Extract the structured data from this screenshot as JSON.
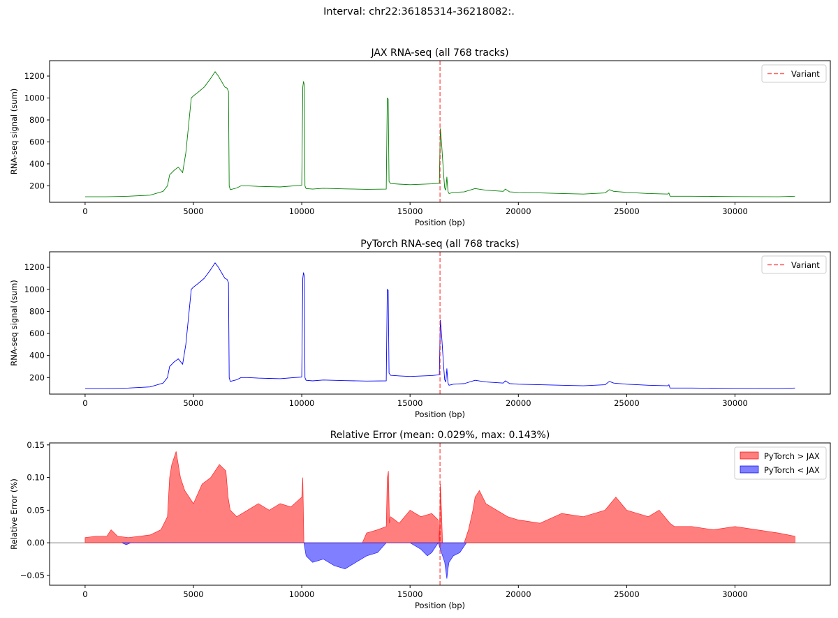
{
  "suptitle": "Interval: chr22:36185314-36218082:.",
  "colors": {
    "jax": "#008000",
    "pytorch": "#0000ff",
    "variant": "#ff0000",
    "pos_fill": "#ff0000",
    "neg_fill": "#0000ff",
    "zero_line": "#000000"
  },
  "chart_data": [
    {
      "type": "line",
      "title": "JAX RNA-seq (all 768 tracks)",
      "xlabel": "Position (bp)",
      "ylabel": "RNA-seq signal (sum)",
      "xlim": [
        -1640,
        34400
      ],
      "ylim": [
        50,
        1340
      ],
      "xticks": [
        "0",
        "5000",
        "10000",
        "15000",
        "20000",
        "25000",
        "30000"
      ],
      "xtick_values": [
        0,
        5000,
        10000,
        15000,
        20000,
        25000,
        30000
      ],
      "yticks": [
        "200",
        "400",
        "600",
        "800",
        "1000",
        "1200"
      ],
      "ytick_values": [
        200,
        400,
        600,
        800,
        1000,
        1200
      ],
      "variant_x": 16384,
      "legend": [
        "Variant"
      ],
      "legend_position": "top-right",
      "series": [
        {
          "name": "JAX",
          "x": [
            0,
            1000,
            2000,
            3000,
            3600,
            3800,
            3900,
            4100,
            4300,
            4500,
            4650,
            4800,
            4900,
            5000,
            5200,
            5500,
            5800,
            6000,
            6150,
            6300,
            6450,
            6550,
            6620,
            6650,
            6700,
            7000,
            7200,
            7500,
            8000,
            9000,
            10000,
            10050,
            10080,
            10120,
            10150,
            10200,
            10500,
            11000,
            12000,
            13000,
            13900,
            13950,
            13990,
            14030,
            14070,
            14100,
            14500,
            15000,
            16000,
            16350,
            16400,
            16450,
            16550,
            16600,
            16650,
            16700,
            16750,
            16800,
            17000,
            17500,
            18000,
            18500,
            19300,
            19400,
            19600,
            20000,
            21000,
            22000,
            23000,
            24000,
            24200,
            24400,
            25000,
            26000,
            26900,
            26950,
            27000,
            27200,
            28000,
            30000,
            32000,
            32768
          ],
          "y": [
            100,
            100,
            105,
            115,
            150,
            200,
            300,
            340,
            370,
            320,
            500,
            800,
            1000,
            1020,
            1050,
            1100,
            1180,
            1240,
            1200,
            1150,
            1100,
            1090,
            1060,
            200,
            165,
            180,
            200,
            200,
            195,
            190,
            205,
            1100,
            1150,
            1120,
            200,
            175,
            170,
            178,
            172,
            168,
            170,
            1000,
            990,
            240,
            230,
            220,
            215,
            210,
            218,
            225,
            720,
            600,
            300,
            180,
            160,
            280,
            150,
            130,
            140,
            145,
            175,
            160,
            150,
            170,
            145,
            140,
            135,
            130,
            125,
            135,
            165,
            150,
            140,
            130,
            125,
            135,
            105,
            105,
            105,
            102,
            100,
            105
          ]
        }
      ]
    },
    {
      "type": "line",
      "title": "PyTorch RNA-seq (all 768 tracks)",
      "xlabel": "Position (bp)",
      "ylabel": "RNA-seq signal (sum)",
      "xlim": [
        -1640,
        34400
      ],
      "ylim": [
        50,
        1340
      ],
      "xticks": [
        "0",
        "5000",
        "10000",
        "15000",
        "20000",
        "25000",
        "30000"
      ],
      "xtick_values": [
        0,
        5000,
        10000,
        15000,
        20000,
        25000,
        30000
      ],
      "yticks": [
        "200",
        "400",
        "600",
        "800",
        "1000",
        "1200"
      ],
      "ytick_values": [
        200,
        400,
        600,
        800,
        1000,
        1200
      ],
      "variant_x": 16384,
      "legend": [
        "Variant"
      ],
      "legend_position": "top-right",
      "series": [
        {
          "name": "PyTorch",
          "x": [
            0,
            1000,
            2000,
            3000,
            3600,
            3800,
            3900,
            4100,
            4300,
            4500,
            4650,
            4800,
            4900,
            5000,
            5200,
            5500,
            5800,
            6000,
            6150,
            6300,
            6450,
            6550,
            6620,
            6650,
            6700,
            7000,
            7200,
            7500,
            8000,
            9000,
            10000,
            10050,
            10080,
            10120,
            10150,
            10200,
            10500,
            11000,
            12000,
            13000,
            13900,
            13950,
            13990,
            14030,
            14070,
            14100,
            14500,
            15000,
            16000,
            16350,
            16400,
            16450,
            16550,
            16600,
            16650,
            16700,
            16750,
            16800,
            17000,
            17500,
            18000,
            18500,
            19300,
            19400,
            19600,
            20000,
            21000,
            22000,
            23000,
            24000,
            24200,
            24400,
            25000,
            26000,
            26900,
            26950,
            27000,
            27200,
            28000,
            30000,
            32000,
            32768
          ],
          "y": [
            100,
            100,
            105,
            115,
            150,
            200,
            300,
            340,
            370,
            320,
            500,
            800,
            1000,
            1020,
            1050,
            1100,
            1180,
            1240,
            1200,
            1150,
            1100,
            1090,
            1060,
            200,
            165,
            180,
            200,
            200,
            195,
            190,
            205,
            1100,
            1150,
            1120,
            200,
            175,
            170,
            178,
            172,
            168,
            170,
            1000,
            990,
            240,
            230,
            220,
            215,
            210,
            218,
            225,
            720,
            600,
            300,
            180,
            160,
            280,
            150,
            130,
            140,
            145,
            175,
            160,
            150,
            170,
            145,
            140,
            135,
            130,
            125,
            135,
            165,
            150,
            140,
            130,
            125,
            135,
            105,
            105,
            105,
            102,
            100,
            105
          ]
        }
      ]
    },
    {
      "type": "area",
      "title": "Relative Error (mean: 0.029%, max: 0.143%)",
      "xlabel": "Position (bp)",
      "ylabel": "Relative Error (%)",
      "xlim": [
        -1640,
        34400
      ],
      "ylim": [
        -0.065,
        0.153
      ],
      "xticks": [
        "0",
        "5000",
        "10000",
        "15000",
        "20000",
        "25000",
        "30000"
      ],
      "xtick_values": [
        0,
        5000,
        10000,
        15000,
        20000,
        25000,
        30000
      ],
      "yticks": [
        "−0.05",
        "0.00",
        "0.05",
        "0.10",
        "0.15"
      ],
      "ytick_values": [
        -0.05,
        0,
        0.05,
        0.1,
        0.15
      ],
      "variant_x": 16384,
      "legend": [
        "PyTorch > JAX",
        "PyTorch < JAX"
      ],
      "legend_position": "top-right",
      "series": [
        {
          "name": "PyTorch > JAX",
          "x": [
            0,
            500,
            1000,
            1200,
            1500,
            2000,
            2500,
            3000,
            3500,
            3800,
            3900,
            4000,
            4200,
            4400,
            4600,
            5000,
            5400,
            5800,
            6200,
            6500,
            6600,
            6700,
            7000,
            7500,
            8000,
            8500,
            9000,
            9500,
            10000,
            10050,
            10100,
            12800,
            13000,
            13500,
            13900,
            13950,
            14000,
            14050,
            14100,
            14500,
            15000,
            15500,
            16000,
            16300,
            16350,
            16400,
            16450,
            16500,
            17500,
            17700,
            17900,
            18000,
            18200,
            18500,
            19000,
            19500,
            20000,
            21000,
            22000,
            23000,
            24000,
            24500,
            25000,
            25500,
            26000,
            26500,
            27000,
            27200,
            28000,
            29000,
            30000,
            31000,
            32000,
            32768
          ],
          "y": [
            0.008,
            0.01,
            0.01,
            0.02,
            0.01,
            0.008,
            0.01,
            0.012,
            0.02,
            0.04,
            0.1,
            0.12,
            0.14,
            0.1,
            0.08,
            0.06,
            0.09,
            0.1,
            0.12,
            0.11,
            0.07,
            0.05,
            0.04,
            0.05,
            0.06,
            0.05,
            0.06,
            0.055,
            0.07,
            0.1,
            0.0,
            0.0,
            0.015,
            0.02,
            0.025,
            0.1,
            0.11,
            0.03,
            0.04,
            0.03,
            0.05,
            0.04,
            0.045,
            0.035,
            0.0,
            0.09,
            0.05,
            0.0,
            0.0,
            0.02,
            0.05,
            0.07,
            0.08,
            0.06,
            0.05,
            0.04,
            0.035,
            0.03,
            0.045,
            0.04,
            0.05,
            0.07,
            0.05,
            0.045,
            0.04,
            0.05,
            0.03,
            0.025,
            0.025,
            0.02,
            0.025,
            0.02,
            0.015,
            0.01
          ]
        },
        {
          "name": "PyTorch < JAX",
          "x": [
            1700,
            1900,
            2100,
            10100,
            10200,
            10500,
            11000,
            11500,
            12000,
            12500,
            13000,
            13500,
            13900,
            14100,
            15000,
            15500,
            15800,
            16000,
            16300,
            16600,
            16700,
            16750,
            16800,
            17000,
            17300,
            17600
          ],
          "y": [
            0,
            -0.003,
            0,
            0,
            -0.02,
            -0.03,
            -0.025,
            -0.035,
            -0.04,
            -0.03,
            -0.02,
            -0.015,
            0,
            0,
            0,
            -0.01,
            -0.02,
            -0.015,
            0,
            -0.03,
            -0.055,
            -0.04,
            -0.03,
            -0.02,
            -0.015,
            0
          ]
        }
      ]
    }
  ]
}
